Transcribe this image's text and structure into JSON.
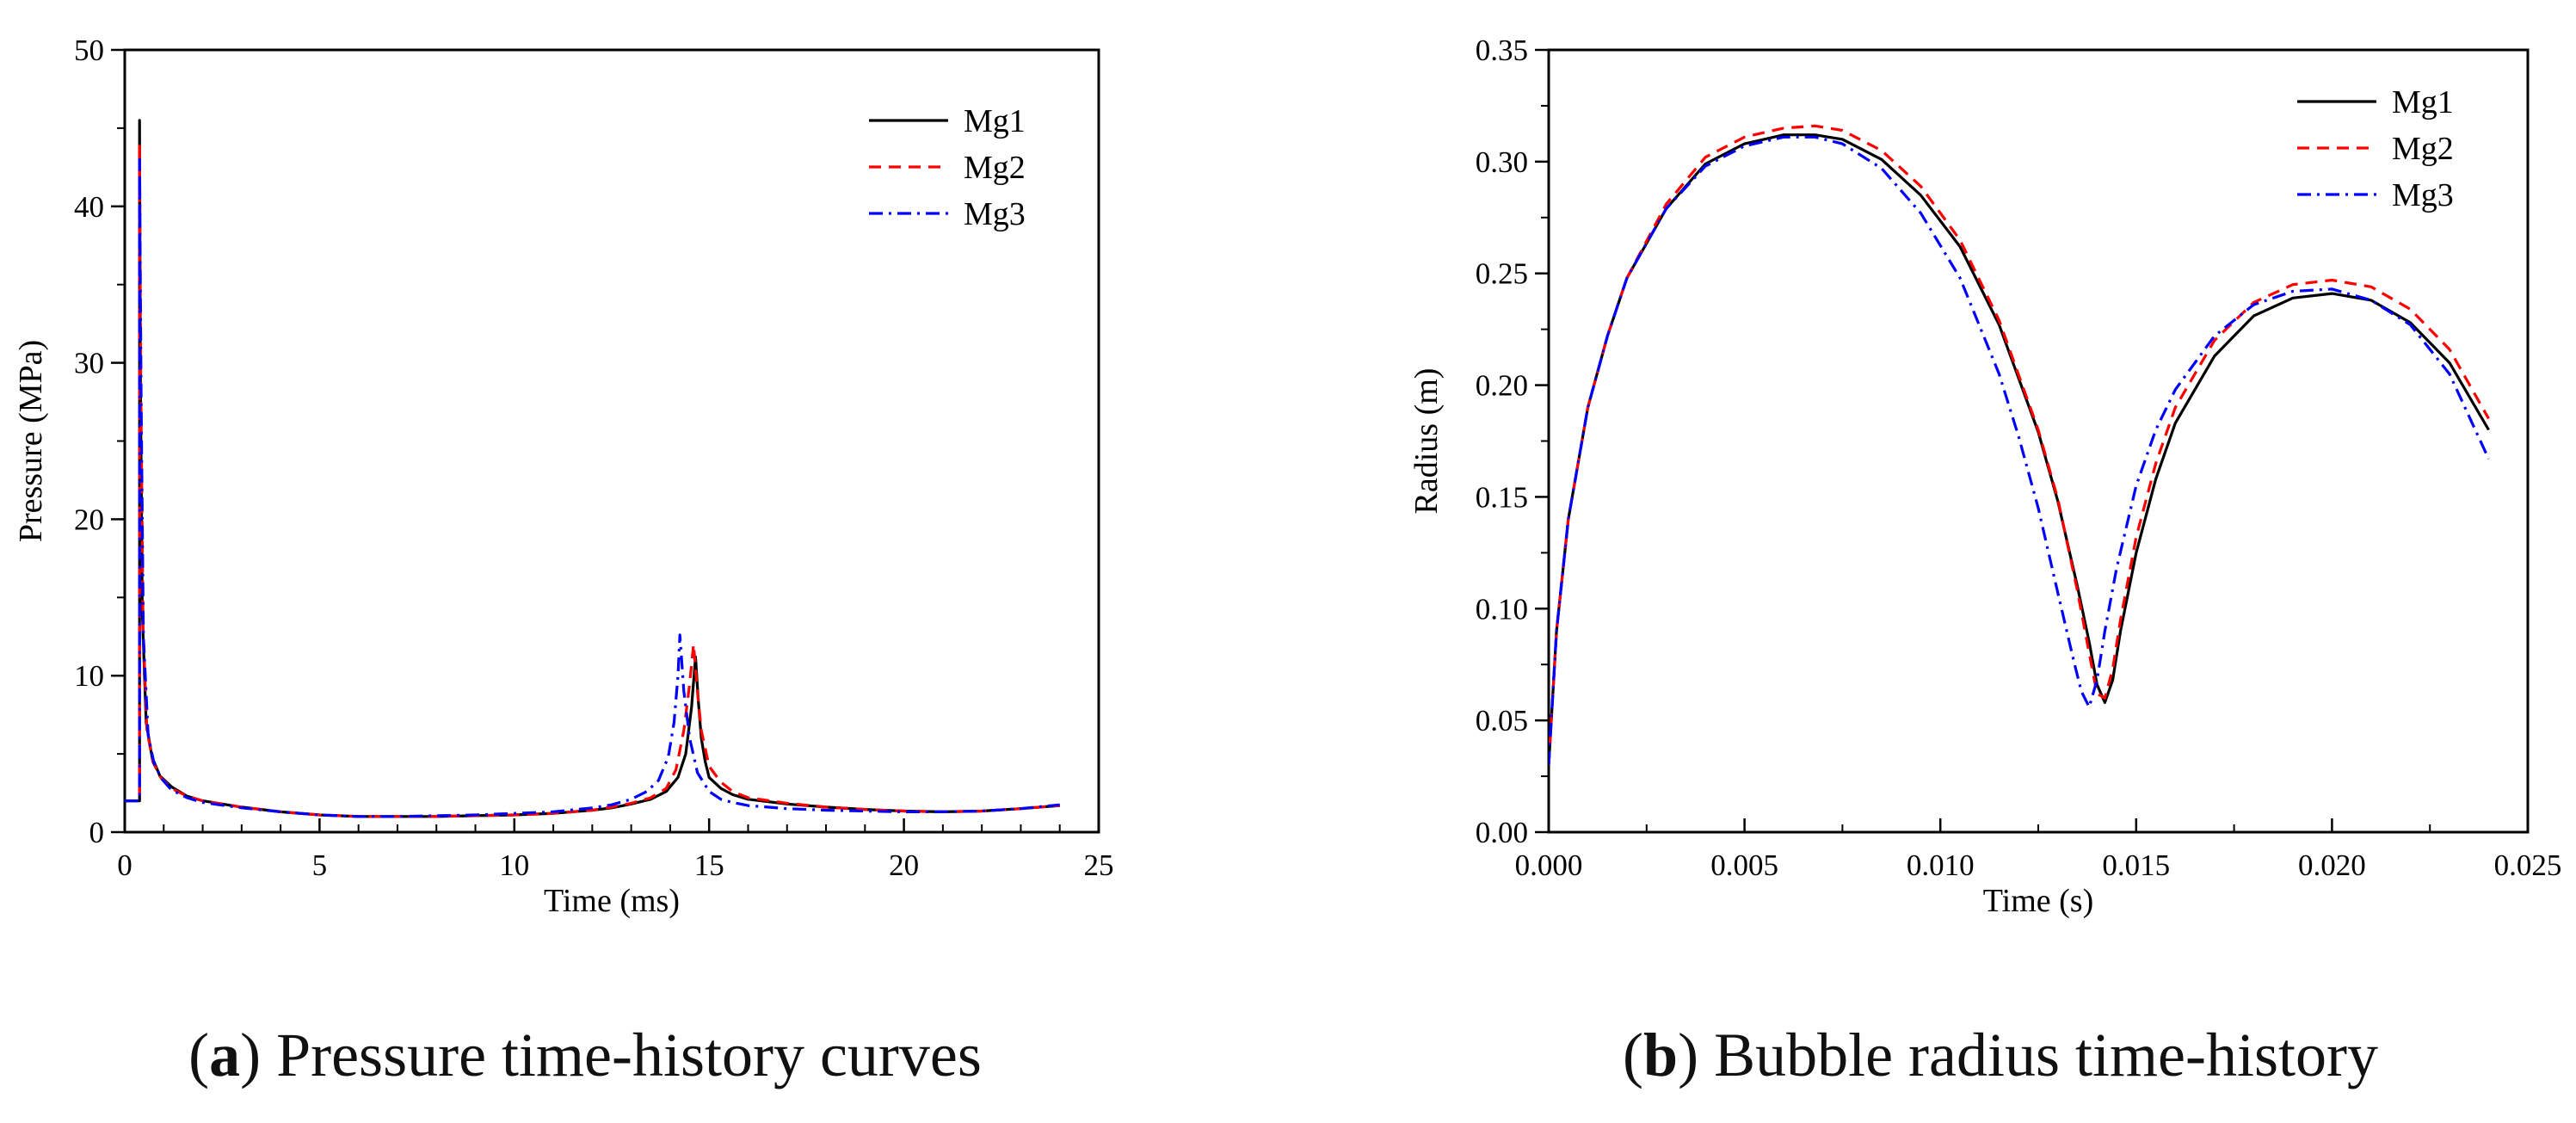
{
  "chart_data": [
    {
      "type": "line",
      "panel_label": "a",
      "caption": "Pressure time-history curves",
      "xlabel": "Time (ms)",
      "ylabel": "Pressure (MPa)",
      "xlim": [
        0,
        25
      ],
      "ylim": [
        0,
        50
      ],
      "xticks": [
        0,
        5,
        10,
        15,
        20,
        25
      ],
      "yticks": [
        0,
        10,
        20,
        30,
        40,
        50
      ],
      "xtick_labels": [
        "0",
        "5",
        "10",
        "15",
        "20",
        "25"
      ],
      "ytick_labels": [
        "0",
        "10",
        "20",
        "30",
        "40",
        "50"
      ],
      "legend_position": "top-right",
      "series": [
        {
          "name": "Mg1",
          "color": "#000000",
          "dash": "solid",
          "x": [
            0,
            0.38,
            0.38,
            0.4,
            0.45,
            0.55,
            0.7,
            0.9,
            1.2,
            1.6,
            2,
            3,
            4,
            5,
            6,
            7,
            8,
            9,
            10,
            11,
            12,
            12.5,
            13,
            13.5,
            13.9,
            14.2,
            14.4,
            14.55,
            14.65,
            14.72,
            14.8,
            14.9,
            15,
            15.3,
            15.6,
            16,
            17,
            18,
            19,
            20,
            21,
            22,
            23,
            24
          ],
          "y": [
            2,
            2,
            45.5,
            30,
            14,
            7,
            4.8,
            3.6,
            2.9,
            2.3,
            2,
            1.6,
            1.3,
            1.1,
            1,
            1,
            1,
            1.05,
            1.1,
            1.2,
            1.4,
            1.55,
            1.8,
            2.1,
            2.6,
            3.5,
            5,
            8,
            11.2,
            8.5,
            6,
            4.5,
            3.5,
            2.8,
            2.4,
            2.1,
            1.8,
            1.6,
            1.45,
            1.35,
            1.3,
            1.35,
            1.5,
            1.7
          ]
        },
        {
          "name": "Mg2",
          "color": "#ff0000",
          "dash": "dashed",
          "x": [
            0,
            0.38,
            0.38,
            0.41,
            0.47,
            0.57,
            0.72,
            0.92,
            1.2,
            1.6,
            2,
            3,
            4,
            5,
            6,
            7,
            8,
            9,
            10,
            11,
            12,
            12.5,
            13,
            13.5,
            13.9,
            14.15,
            14.35,
            14.5,
            14.6,
            14.7,
            14.8,
            15,
            15.3,
            15.6,
            16,
            17,
            18,
            19,
            20,
            21,
            22,
            23,
            24
          ],
          "y": [
            2,
            2,
            44,
            29,
            13,
            6.5,
            4.5,
            3.5,
            2.8,
            2.3,
            2,
            1.6,
            1.3,
            1.1,
            1,
            1,
            1,
            1.05,
            1.1,
            1.2,
            1.4,
            1.6,
            1.85,
            2.2,
            2.8,
            4,
            6.5,
            9.5,
            12,
            9,
            6.5,
            4.2,
            3.2,
            2.6,
            2.2,
            1.85,
            1.6,
            1.45,
            1.35,
            1.3,
            1.35,
            1.5,
            1.7
          ]
        },
        {
          "name": "Mg3",
          "color": "#0000ff",
          "dash": "dashdot",
          "x": [
            0,
            0.38,
            0.38,
            0.42,
            0.48,
            0.6,
            0.75,
            0.95,
            1.2,
            1.6,
            2,
            3,
            4,
            5,
            6,
            7,
            8,
            9,
            10,
            11,
            12,
            12.5,
            13,
            13.4,
            13.7,
            13.95,
            14.1,
            14.2,
            14.25,
            14.35,
            14.5,
            14.7,
            15,
            15.3,
            15.6,
            16,
            17,
            18,
            19,
            20,
            21,
            22,
            23,
            24
          ],
          "y": [
            2,
            2,
            43,
            28,
            12.5,
            6.2,
            4.4,
            3.4,
            2.7,
            2.2,
            1.9,
            1.55,
            1.3,
            1.1,
            1,
            1,
            1.05,
            1.1,
            1.2,
            1.3,
            1.55,
            1.75,
            2.1,
            2.6,
            3.3,
            4.8,
            7,
            10,
            12.6,
            9,
            6,
            3.8,
            2.6,
            2.1,
            1.9,
            1.7,
            1.5,
            1.4,
            1.35,
            1.3,
            1.3,
            1.35,
            1.5,
            1.75
          ]
        }
      ]
    },
    {
      "type": "line",
      "panel_label": "b",
      "caption": "Bubble radius time-history",
      "xlabel": "Time (s)",
      "ylabel": "Radius (m)",
      "xlim": [
        0,
        0.025
      ],
      "ylim": [
        0,
        0.35
      ],
      "xticks": [
        0,
        0.005,
        0.01,
        0.015,
        0.02,
        0.025
      ],
      "yticks": [
        0,
        0.05,
        0.1,
        0.15,
        0.2,
        0.25,
        0.3,
        0.35
      ],
      "xtick_labels": [
        "0.000",
        "0.005",
        "0.010",
        "0.015",
        "0.020",
        "0.025"
      ],
      "ytick_labels": [
        "0.00",
        "0.05",
        "0.10",
        "0.15",
        "0.20",
        "0.25",
        "0.30",
        "0.35"
      ],
      "legend_position": "top-right",
      "series": [
        {
          "name": "Mg1",
          "color": "#000000",
          "dash": "solid",
          "x": [
            0,
            0.0002,
            0.0005,
            0.001,
            0.0015,
            0.002,
            0.003,
            0.004,
            0.005,
            0.006,
            0.0068,
            0.0075,
            0.0085,
            0.0095,
            0.0105,
            0.0115,
            0.0125,
            0.013,
            0.0135,
            0.0138,
            0.014,
            0.0142,
            0.0144,
            0.0146,
            0.015,
            0.0155,
            0.016,
            0.017,
            0.018,
            0.019,
            0.02,
            0.021,
            0.022,
            0.023,
            0.024
          ],
          "y": [
            0.03,
            0.09,
            0.14,
            0.19,
            0.222,
            0.248,
            0.279,
            0.299,
            0.308,
            0.312,
            0.312,
            0.31,
            0.301,
            0.285,
            0.262,
            0.227,
            0.179,
            0.148,
            0.11,
            0.085,
            0.066,
            0.058,
            0.068,
            0.09,
            0.125,
            0.158,
            0.183,
            0.213,
            0.231,
            0.239,
            0.241,
            0.238,
            0.228,
            0.21,
            0.18
          ]
        },
        {
          "name": "Mg2",
          "color": "#ff0000",
          "dash": "dashed",
          "x": [
            0,
            0.0002,
            0.0005,
            0.001,
            0.0015,
            0.002,
            0.003,
            0.004,
            0.005,
            0.006,
            0.0068,
            0.0075,
            0.0085,
            0.0095,
            0.0105,
            0.0115,
            0.0125,
            0.013,
            0.0135,
            0.0138,
            0.014,
            0.0142,
            0.0144,
            0.0146,
            0.015,
            0.0155,
            0.016,
            0.017,
            0.018,
            0.019,
            0.02,
            0.021,
            0.022,
            0.023,
            0.024
          ],
          "y": [
            0.03,
            0.09,
            0.14,
            0.19,
            0.222,
            0.248,
            0.281,
            0.302,
            0.311,
            0.315,
            0.316,
            0.314,
            0.305,
            0.289,
            0.265,
            0.229,
            0.18,
            0.149,
            0.108,
            0.08,
            0.062,
            0.06,
            0.073,
            0.095,
            0.132,
            0.165,
            0.19,
            0.22,
            0.237,
            0.245,
            0.247,
            0.244,
            0.234,
            0.216,
            0.185
          ]
        },
        {
          "name": "Mg3",
          "color": "#0000ff",
          "dash": "dashdot",
          "x": [
            0,
            0.0002,
            0.0005,
            0.001,
            0.0015,
            0.002,
            0.003,
            0.004,
            0.005,
            0.006,
            0.0068,
            0.0075,
            0.0085,
            0.0095,
            0.0105,
            0.0115,
            0.012,
            0.0125,
            0.013,
            0.0134,
            0.0136,
            0.0138,
            0.014,
            0.0142,
            0.0145,
            0.015,
            0.0155,
            0.016,
            0.017,
            0.018,
            0.019,
            0.02,
            0.021,
            0.022,
            0.023,
            0.024
          ],
          "y": [
            0.03,
            0.09,
            0.14,
            0.19,
            0.222,
            0.248,
            0.279,
            0.298,
            0.307,
            0.311,
            0.311,
            0.308,
            0.297,
            0.277,
            0.248,
            0.205,
            0.177,
            0.145,
            0.107,
            0.077,
            0.063,
            0.056,
            0.068,
            0.09,
            0.118,
            0.155,
            0.18,
            0.198,
            0.222,
            0.236,
            0.242,
            0.243,
            0.238,
            0.227,
            0.205,
            0.167
          ]
        }
      ]
    }
  ]
}
